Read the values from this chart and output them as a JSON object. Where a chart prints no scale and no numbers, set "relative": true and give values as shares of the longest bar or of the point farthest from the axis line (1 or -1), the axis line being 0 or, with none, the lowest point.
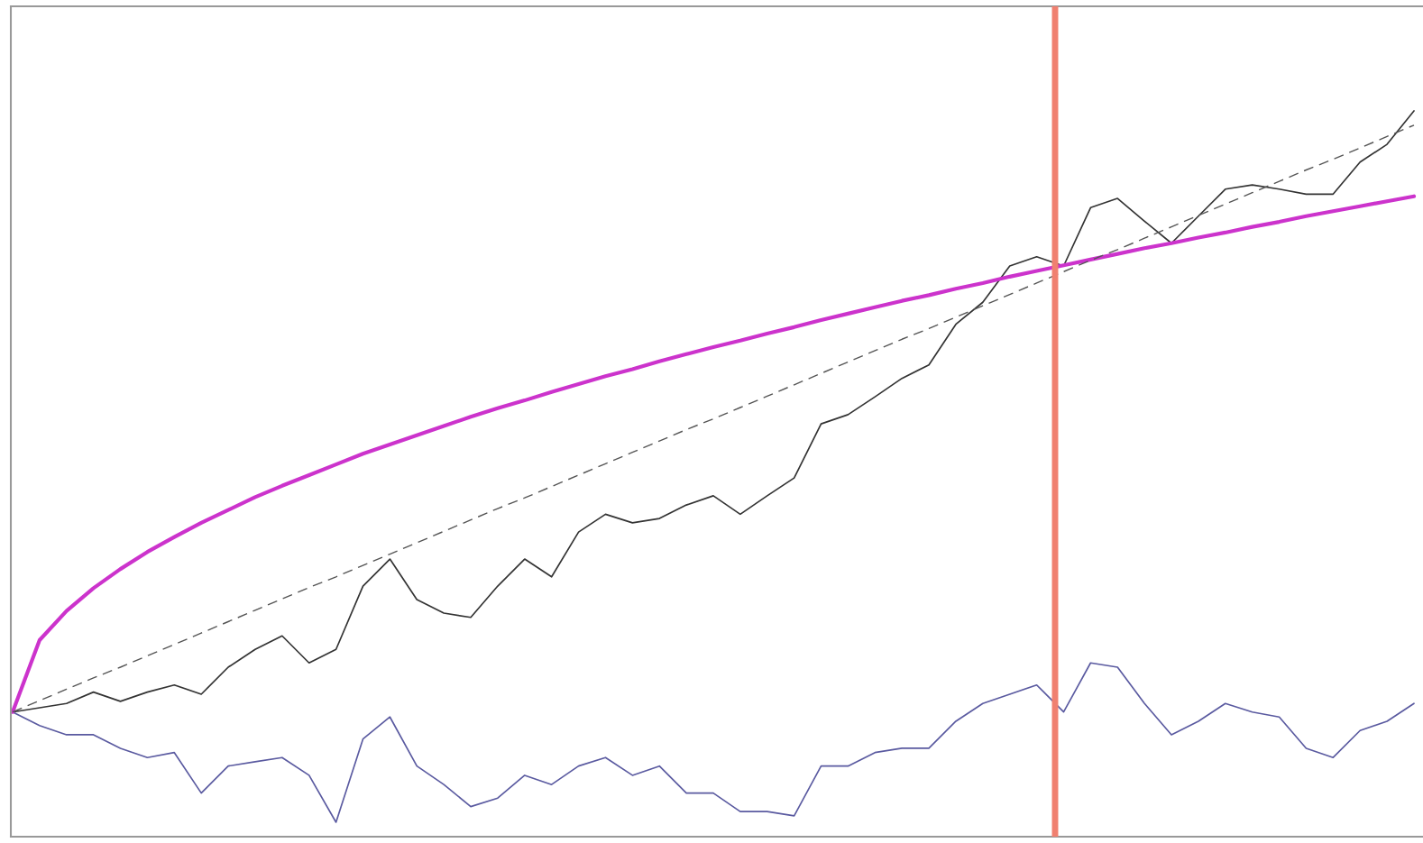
{
  "chart_data": {
    "type": "line",
    "relative": true,
    "categories": [
      null,
      null,
      null,
      null,
      null,
      null,
      null,
      null,
      null,
      null,
      null,
      null,
      null,
      null,
      null,
      null,
      null,
      null,
      null,
      null,
      null,
      null,
      null,
      null,
      null,
      null,
      null,
      null,
      null,
      null,
      null,
      null,
      null,
      null,
      null,
      null,
      null,
      null,
      null,
      null,
      null,
      null,
      null,
      null,
      null,
      null,
      null,
      null,
      null,
      null,
      null,
      null,
      null
    ],
    "series": [
      {
        "color": "#333333",
        "line_style": "solid",
        "values": [
          0.155,
          0.161,
          0.167,
          0.183,
          0.17,
          0.183,
          0.193,
          0.18,
          0.218,
          0.243,
          0.262,
          0.224,
          0.243,
          0.332,
          0.37,
          0.313,
          0.294,
          0.288,
          0.332,
          0.37,
          0.345,
          0.408,
          0.433,
          0.421,
          0.427,
          0.446,
          0.459,
          0.433,
          0.459,
          0.484,
          0.56,
          0.573,
          0.598,
          0.624,
          0.643,
          0.7,
          0.731,
          0.782,
          0.795,
          0.782,
          0.864,
          0.877,
          0.845,
          0.814,
          0.852,
          0.89,
          0.896,
          0.89,
          0.883,
          0.883,
          0.928,
          0.953,
          1.0
        ]
      },
      {
        "color": "#5a5aa0",
        "line_style": "solid",
        "values": [
          0.155,
          0.136,
          0.123,
          0.123,
          0.104,
          0.091,
          0.098,
          0.041,
          0.079,
          0.085,
          0.091,
          0.066,
          0.0,
          0.117,
          0.148,
          0.079,
          0.053,
          0.022,
          0.034,
          0.066,
          0.053,
          0.079,
          0.091,
          0.066,
          0.079,
          0.041,
          0.041,
          0.015,
          0.015,
          0.009,
          0.079,
          0.079,
          0.098,
          0.104,
          0.104,
          0.142,
          0.167,
          0.18,
          0.193,
          0.155,
          0.224,
          0.218,
          0.167,
          0.123,
          0.142,
          0.167,
          0.155,
          0.148,
          0.104,
          0.091,
          0.129,
          0.142,
          0.167
        ]
      },
      {
        "color": "#cc33cc",
        "line_style": "solid",
        "values": [
          0.155,
          0.256,
          0.297,
          0.329,
          0.356,
          0.38,
          0.401,
          0.421,
          0.439,
          0.457,
          0.473,
          0.488,
          0.503,
          0.518,
          0.531,
          0.544,
          0.557,
          0.57,
          0.582,
          0.593,
          0.605,
          0.616,
          0.627,
          0.637,
          0.648,
          0.658,
          0.668,
          0.677,
          0.687,
          0.696,
          0.706,
          0.715,
          0.724,
          0.733,
          0.741,
          0.75,
          0.758,
          0.767,
          0.775,
          0.783,
          0.791,
          0.799,
          0.807,
          0.814,
          0.822,
          0.829,
          0.837,
          0.844,
          0.852,
          0.859,
          0.866,
          0.873,
          0.88
        ]
      },
      {
        "color": "#555555",
        "line_style": "dashed",
        "values": [
          0.155,
          0.171,
          0.187,
          0.203,
          0.218,
          0.234,
          0.25,
          0.266,
          0.282,
          0.298,
          0.314,
          0.33,
          0.345,
          0.361,
          0.377,
          0.393,
          0.409,
          0.425,
          0.441,
          0.456,
          0.472,
          0.488,
          0.504,
          0.52,
          0.536,
          0.552,
          0.567,
          0.583,
          0.599,
          0.615,
          0.631,
          0.647,
          0.663,
          0.679,
          0.694,
          0.71,
          0.726,
          0.742,
          0.758,
          0.774,
          0.79,
          0.805,
          0.821,
          0.837,
          0.853,
          0.869,
          0.885,
          0.901,
          0.917,
          0.932,
          0.948,
          0.964,
          0.98
        ]
      }
    ],
    "legend": false,
    "marker": "none"
  }
}
